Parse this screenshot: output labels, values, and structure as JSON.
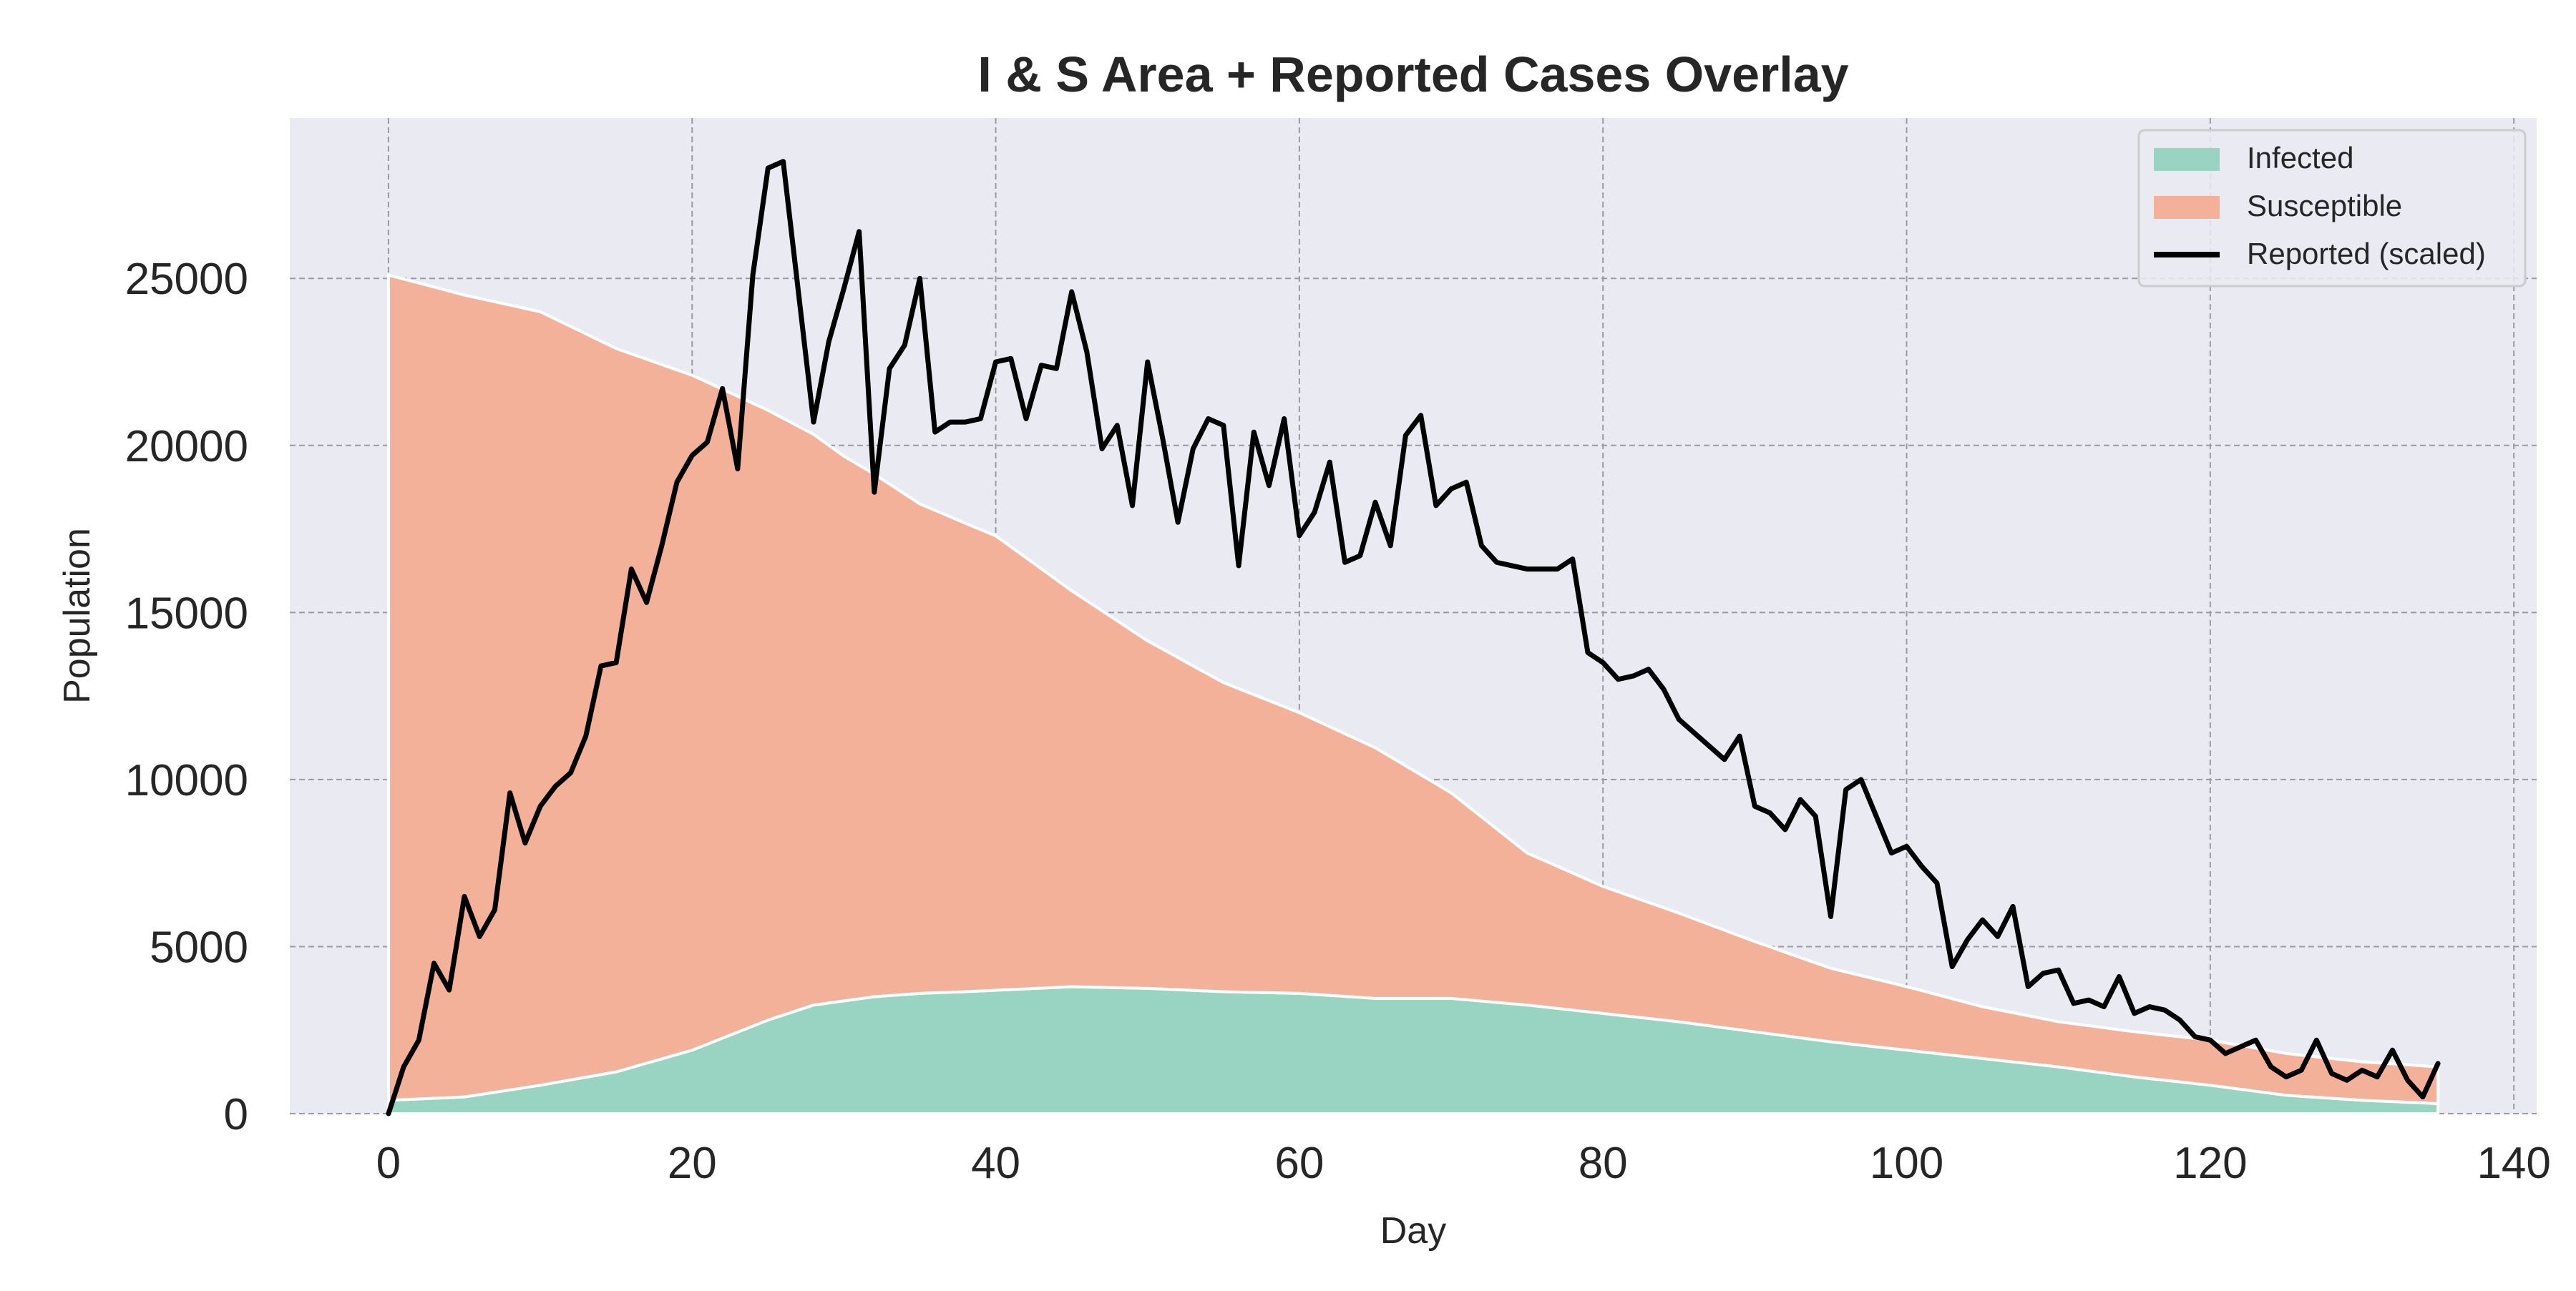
{
  "chart_data": {
    "type": "area",
    "title": "I & S Area + Reported Cases Overlay",
    "xlabel": "Day",
    "ylabel": "Population",
    "xlim": [
      -6.5,
      141.5
    ],
    "ylim": [
      0,
      29800
    ],
    "xticks": [
      0,
      20,
      40,
      60,
      80,
      100,
      120,
      140
    ],
    "yticks": [
      0,
      5000,
      10000,
      15000,
      20000,
      25000
    ],
    "grid": true,
    "stacked": true,
    "legend_position": "top-right",
    "legend": [
      "Infected",
      "Susceptible",
      "Reported (scaled)"
    ],
    "series": [
      {
        "name": "Infected",
        "kind": "area",
        "color": "#99d4c3",
        "x": [
          0,
          5,
          10,
          15,
          20,
          25,
          28,
          32,
          35,
          38,
          45,
          50,
          55,
          60,
          65,
          70,
          75,
          80,
          85,
          90,
          95,
          100,
          105,
          110,
          115,
          120,
          125,
          130,
          135
        ],
        "values": [
          400,
          500,
          850,
          1250,
          1900,
          2800,
          3250,
          3500,
          3600,
          3650,
          3800,
          3750,
          3650,
          3600,
          3450,
          3450,
          3250,
          3000,
          2750,
          2450,
          2150,
          1900,
          1650,
          1400,
          1100,
          850,
          550,
          400,
          300
        ]
      },
      {
        "name": "Susceptible",
        "kind": "area",
        "color": "#f4b19a",
        "x": [
          0,
          5,
          10,
          15,
          20,
          25,
          30,
          35,
          40,
          45,
          50,
          55,
          60,
          65,
          70,
          75,
          80,
          85,
          90,
          95,
          100,
          105,
          110,
          115,
          120,
          125,
          130,
          135
        ],
        "values": [
          24700,
          24000,
          23150,
          21650,
          20200,
          18250,
          16300,
          14650,
          13600,
          11850,
          10400,
          9250,
          8400,
          7500,
          6150,
          4550,
          3800,
          3250,
          2700,
          2200,
          1900,
          1550,
          1350,
          1350,
          1350,
          1250,
          1150,
          1100
        ]
      },
      {
        "name": "Reported (scaled)",
        "kind": "line",
        "color": "#000000",
        "x": [
          0,
          1,
          2,
          3,
          4,
          5,
          6,
          7,
          8,
          9,
          10,
          11,
          12,
          13,
          14,
          15,
          16,
          17,
          18,
          19,
          20,
          21,
          22,
          23,
          24,
          25,
          26,
          27,
          28,
          29,
          30,
          31,
          32,
          33,
          34,
          35,
          36,
          37,
          38,
          39,
          40,
          41,
          42,
          43,
          44,
          45,
          46,
          47,
          48,
          49,
          50,
          51,
          52,
          53,
          54,
          55,
          56,
          57,
          58,
          59,
          60,
          61,
          62,
          63,
          64,
          65,
          66,
          67,
          68,
          69,
          70,
          71,
          72,
          73,
          74,
          75,
          76,
          77,
          78,
          79,
          80,
          81,
          82,
          83,
          84,
          85,
          86,
          87,
          88,
          89,
          90,
          91,
          92,
          93,
          94,
          95,
          96,
          97,
          98,
          99,
          100,
          101,
          102,
          103,
          104,
          105,
          106,
          107,
          108,
          109,
          110,
          111,
          112,
          113,
          114,
          115,
          116,
          117,
          118,
          119,
          120,
          121,
          122,
          123,
          124,
          125,
          126,
          127,
          128,
          129,
          130,
          131,
          132,
          133,
          134,
          135
        ],
        "values": [
          0,
          1400,
          2200,
          4500,
          3700,
          6500,
          5300,
          6100,
          9600,
          8100,
          9200,
          9800,
          10200,
          11300,
          13400,
          13500,
          16300,
          15300,
          17000,
          18900,
          19700,
          20100,
          21700,
          19300,
          25100,
          28300,
          28500,
          24600,
          20700,
          23100,
          24700,
          26400,
          18600,
          22300,
          23000,
          25000,
          20400,
          20700,
          20700,
          20800,
          22500,
          22600,
          20800,
          22400,
          22300,
          24600,
          22800,
          19900,
          20600,
          18200,
          22500,
          20200,
          17700,
          19900,
          20800,
          20600,
          16400,
          20400,
          18800,
          20800,
          17300,
          18000,
          19500,
          16500,
          16700,
          18300,
          17000,
          20300,
          20900,
          18200,
          18700,
          18900,
          17000,
          16500,
          16400,
          16300,
          16300,
          16300,
          16600,
          13800,
          13500,
          13000,
          13100,
          13300,
          12700,
          11800,
          11400,
          11000,
          10600,
          11300,
          9200,
          9000,
          8500,
          9400,
          8900,
          5900,
          9700,
          10000,
          8900,
          7800,
          8000,
          7400,
          6900,
          4400,
          5200,
          5800,
          5300,
          6200,
          3800,
          4200,
          4300,
          3300,
          3400,
          3200,
          4100,
          3000,
          3200,
          3100,
          2800,
          2300,
          2200,
          1800,
          2000,
          2200,
          1400,
          1100,
          1300,
          2200,
          1200,
          1000,
          1300,
          1100,
          1900,
          1000,
          500,
          1500
        ]
      }
    ]
  }
}
